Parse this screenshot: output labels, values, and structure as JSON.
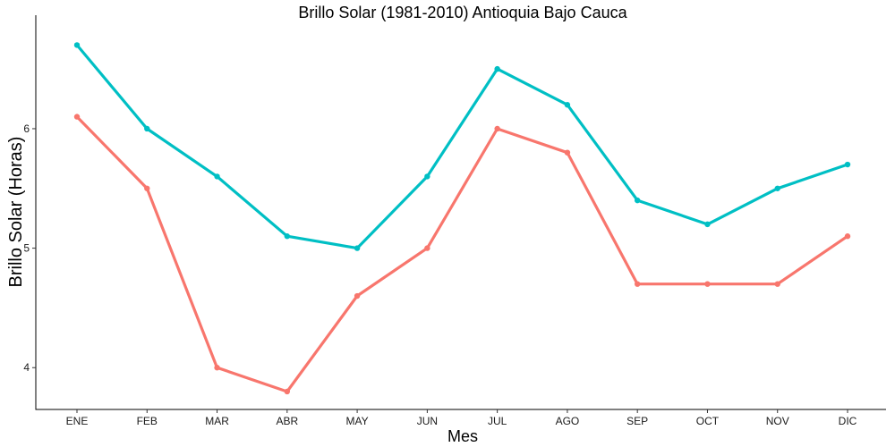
{
  "chart_data": {
    "type": "line",
    "title": "Brillo Solar (1981-2010)  Antioquia Bajo Cauca",
    "xlabel": "Mes",
    "ylabel": "Brillo Solar (Horas)",
    "categories": [
      "ENE",
      "FEB",
      "MAR",
      "ABR",
      "MAY",
      "JUN",
      "JUL",
      "AGO",
      "SEP",
      "OCT",
      "NOV",
      "DIC"
    ],
    "yticks": [
      4,
      5,
      6
    ],
    "ylim": [
      3.65,
      6.95
    ],
    "grid": false,
    "legend": "none",
    "series": [
      {
        "color": "#00BFC4",
        "values": [
          6.7,
          6.0,
          5.6,
          5.1,
          5.0,
          5.6,
          6.5,
          6.2,
          5.4,
          5.2,
          5.5,
          5.7
        ]
      },
      {
        "color": "#F8766D",
        "values": [
          6.1,
          5.5,
          4.0,
          3.8,
          4.6,
          5.0,
          6.0,
          5.8,
          4.7,
          4.7,
          4.7,
          5.1
        ]
      }
    ]
  }
}
